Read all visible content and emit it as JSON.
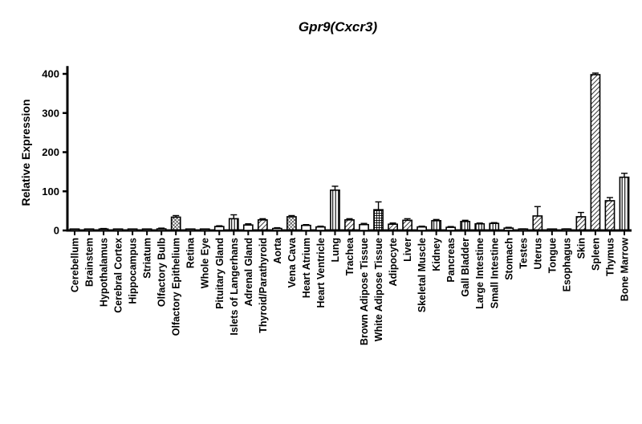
{
  "chart_data": {
    "type": "bar",
    "title": "Gpr9(Cxcr3)",
    "xlabel": "",
    "ylabel": "Relative Expression",
    "ylim": [
      0,
      420
    ],
    "yticks": [
      0,
      100,
      200,
      300,
      400
    ],
    "grid": false,
    "legend": "none",
    "categories": [
      "Cerebellum",
      "Brainstem",
      "Hypothalamus",
      "Cerebral Cortex",
      "Hippocampus",
      "Striatum",
      "Olfactory Bulb",
      "Olfactory Epithelium",
      "Retina",
      "Whole Eye",
      "Pituitary Gland",
      "Islets of Langerhans",
      "Adrenal Gland",
      "Thyroid/Parathyroid",
      "Aorta",
      "Vena Cava",
      "Heart Atrium",
      "Heart Ventricle",
      "Lung",
      "Trachea",
      "Brown Adipose Tissue",
      "White Adipose Tissue",
      "Adipocyte",
      "Liver",
      "Skeletal Muscle",
      "Kidney",
      "Pancreas",
      "Gall Bladder",
      "Large Intestine",
      "Small Intestine",
      "Stomach",
      "Testes",
      "Uterus",
      "Tongue",
      "Esophagus",
      "Skin",
      "Spleen",
      "Thymus",
      "Bone Marrow"
    ],
    "values": [
      0,
      0,
      3,
      0,
      0,
      0,
      4,
      34,
      0,
      0,
      10,
      30,
      14,
      27,
      5,
      35,
      13,
      9,
      103,
      27,
      15,
      53,
      16,
      26,
      9,
      25,
      8,
      23,
      17,
      18,
      6,
      3,
      37,
      2,
      3,
      35,
      398,
      76,
      136
    ],
    "errors": [
      0,
      0,
      2,
      0,
      0,
      0,
      2,
      4,
      0,
      0,
      2,
      10,
      3,
      3,
      2,
      3,
      2,
      2,
      10,
      3,
      3,
      20,
      3,
      4,
      2,
      3,
      2,
      3,
      2,
      2,
      2,
      1,
      24,
      1,
      1,
      11,
      4,
      8,
      10
    ],
    "patterns": [
      "open",
      "open",
      "open",
      "open",
      "open",
      "open",
      "open",
      "cross",
      "open",
      "open",
      "open",
      "vertical",
      "open",
      "diag",
      "open",
      "cross",
      "open",
      "open",
      "vertical",
      "diag",
      "open",
      "grid",
      "diag",
      "diag",
      "open",
      "vertical",
      "open",
      "vertical",
      "vertical",
      "vertical",
      "open",
      "open",
      "diag",
      "open",
      "open",
      "diag",
      "diag",
      "diag",
      "vertical"
    ]
  }
}
